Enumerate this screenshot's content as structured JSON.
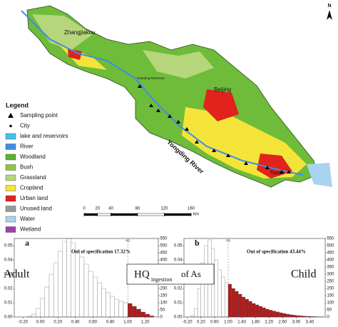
{
  "map": {
    "north": "N",
    "cities": [
      {
        "name": "Zhangjiakou"
      },
      {
        "name": "Guanting Reservoir"
      },
      {
        "name": "Beijing"
      },
      {
        "name": "Tianjin"
      }
    ],
    "river_label": "Yongding River",
    "legend": {
      "title": "Legend",
      "items": [
        {
          "name": "Sampling point",
          "symbol": "triangle",
          "color": "#000000"
        },
        {
          "name": "City",
          "symbol": "star",
          "color": "#000000"
        },
        {
          "name": "lake and reservoirs",
          "color": "#3cc3ea"
        },
        {
          "name": "River",
          "color": "#3d8ee8"
        },
        {
          "name": "Woodland",
          "color": "#5fb030"
        },
        {
          "name": "Bush",
          "color": "#8cc63f"
        },
        {
          "name": "Grassland",
          "color": "#b5d67a"
        },
        {
          "name": "Cropland",
          "color": "#f4e43a"
        },
        {
          "name": "Urban land",
          "color": "#e0231c"
        },
        {
          "name": "Unused land",
          "color": "#9a9a9a"
        },
        {
          "name": "Water",
          "color": "#a9d4f0"
        },
        {
          "name": "Wetland",
          "color": "#a040a8"
        }
      ]
    },
    "scale": {
      "ticks": [
        0,
        20,
        40,
        80,
        120,
        160
      ],
      "unit": "km"
    }
  },
  "center_label": {
    "main": "HQ",
    "subscript": "ingestion",
    "suffix": "of As"
  },
  "chart_data": [
    {
      "type": "histogram",
      "panel": "a",
      "label": "Adult",
      "annotation": "Out of specification 17.32%",
      "bins": [
        -0.2,
        -0.15,
        -0.1,
        -0.05,
        0,
        0.05,
        0.1,
        0.15,
        0.2,
        0.25,
        0.3,
        0.35,
        0.4,
        0.45,
        0.5,
        0.55,
        0.6,
        0.65,
        0.7,
        0.75,
        0.8,
        0.85,
        0.9,
        0.95,
        1,
        1.05,
        1.1,
        1.15,
        1.2,
        1.25,
        1.3
      ],
      "values": [
        0,
        5,
        20,
        60,
        130,
        210,
        300,
        380,
        460,
        530,
        550,
        520,
        470,
        420,
        370,
        320,
        280,
        240,
        200,
        170,
        145,
        125,
        110,
        100,
        95,
        75,
        55,
        35,
        20,
        8
      ],
      "value_axis": "y2",
      "color": "#ffffff",
      "exceed_color": "#b01c1c",
      "reference_line": {
        "value": 1,
        "label": "HQ"
      },
      "xlim": [
        -0.3,
        1.35
      ],
      "xticks": [
        {
          "value": -0.2,
          "label": "-0.20"
        },
        {
          "value": 0,
          "label": "0.00"
        },
        {
          "value": 0.2,
          "label": "0.20"
        },
        {
          "value": 0.4,
          "label": "0.40"
        },
        {
          "value": 0.6,
          "label": "0.60"
        },
        {
          "value": 0.8,
          "label": "0.80"
        },
        {
          "value": 1,
          "label": "1.00"
        },
        {
          "value": 1.2,
          "label": "1.20"
        }
      ],
      "ylim": [
        0,
        0.055
      ],
      "yticks": [
        {
          "value": 0,
          "label": "0.00"
        },
        0.01,
        0.02,
        0.03,
        0.04,
        0.05
      ],
      "y2lim": [
        0,
        550
      ],
      "y2ticks": [
        0,
        50,
        100,
        150,
        200,
        250,
        300,
        350,
        400,
        450,
        500,
        550
      ]
    },
    {
      "type": "histogram",
      "panel": "b",
      "label": "Child",
      "annotation": "Out of specification 43.44%",
      "bins": [
        -0.2,
        -0.1,
        0,
        0.1,
        0.2,
        0.3,
        0.4,
        0.5,
        0.6,
        0.7,
        0.8,
        0.9,
        1,
        1.1,
        1.2,
        1.3,
        1.4,
        1.5,
        1.6,
        1.7,
        1.8,
        1.9,
        2,
        2.1,
        2.2,
        2.3,
        2.4,
        2.5,
        2.6,
        2.7,
        2.8,
        2.9,
        3,
        3.1,
        3.2,
        3.3,
        3.4,
        3.5,
        3.6,
        3.7,
        3.8
      ],
      "values": [
        0,
        10,
        60,
        200,
        380,
        500,
        540,
        480,
        400,
        330,
        280,
        240,
        230,
        200,
        180,
        160,
        140,
        125,
        110,
        95,
        85,
        75,
        65,
        55,
        48,
        42,
        36,
        30,
        25,
        20,
        16,
        13,
        10,
        8,
        6,
        5,
        4,
        3,
        2,
        1
      ],
      "value_axis": "y2",
      "color": "#ffffff",
      "exceed_color": "#b01c1c",
      "reference_line": {
        "value": 1,
        "label": "HQ"
      },
      "xlim": [
        -0.3,
        3.85
      ],
      "xticks": [
        {
          "value": -0.2,
          "label": "-0.20"
        },
        {
          "value": 0.2,
          "label": "0.20"
        },
        {
          "value": 0.6,
          "label": "0.60"
        },
        {
          "value": 1,
          "label": "1.00"
        },
        {
          "value": 1.4,
          "label": "1.40"
        },
        {
          "value": 1.8,
          "label": "1.80"
        },
        {
          "value": 2.2,
          "label": "2.20"
        },
        {
          "value": 2.6,
          "label": "2.60"
        },
        {
          "value": 3,
          "label": "3.00"
        },
        {
          "value": 3.4,
          "label": "3.40"
        }
      ],
      "ylim": [
        0,
        0.055
      ],
      "yticks": [
        {
          "value": 0,
          "label": "0.00"
        },
        0.01,
        0.02,
        0.03,
        0.04,
        0.05
      ],
      "y2lim": [
        0,
        550
      ],
      "y2ticks": [
        0,
        50,
        100,
        150,
        200,
        250,
        300,
        350,
        400,
        450,
        500,
        550
      ]
    }
  ]
}
